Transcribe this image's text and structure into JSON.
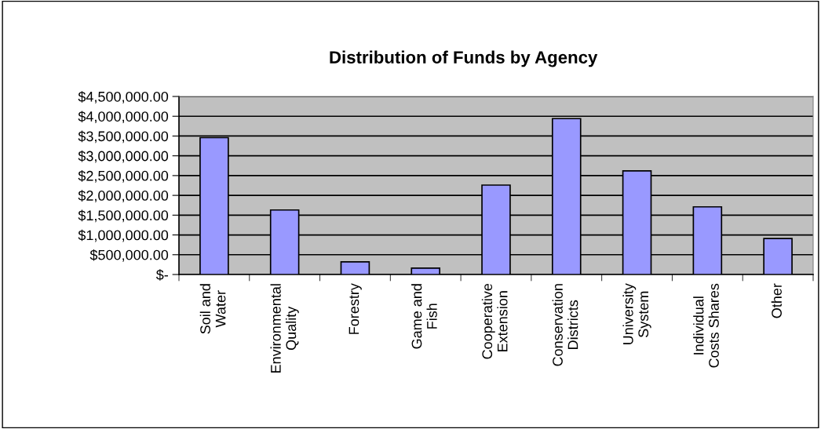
{
  "chart_data": {
    "type": "bar",
    "title": "Distribution of Funds by Agency",
    "categories": [
      "Soil and\nWater",
      "Environmental\nQuality",
      "Forestry",
      "Game and\nFish",
      "Cooperative\nExtension",
      "Conservation\nDistricts",
      "University\nSystem",
      "Individual\nCosts Shares",
      "Other"
    ],
    "values": [
      3460000,
      1630000,
      320000,
      160000,
      2260000,
      3940000,
      2620000,
      1710000,
      910000
    ],
    "color": "#9999ff",
    "ylim": [
      0,
      4500000
    ],
    "yticks": [
      {
        "value": 0,
        "label": "$-"
      },
      {
        "value": 500000,
        "label": "$500,000.00"
      },
      {
        "value": 1000000,
        "label": "$1,000,000.00"
      },
      {
        "value": 1500000,
        "label": "$1,500,000.00"
      },
      {
        "value": 2000000,
        "label": "$2,000,000.00"
      },
      {
        "value": 2500000,
        "label": "$2,500,000.00"
      },
      {
        "value": 3000000,
        "label": "$3,000,000.00"
      },
      {
        "value": 3500000,
        "label": "$3,500,000.00"
      },
      {
        "value": 4000000,
        "label": "$4,000,000.00"
      },
      {
        "value": 4500000,
        "label": "$4,500,000.00"
      }
    ],
    "grid": "y"
  }
}
